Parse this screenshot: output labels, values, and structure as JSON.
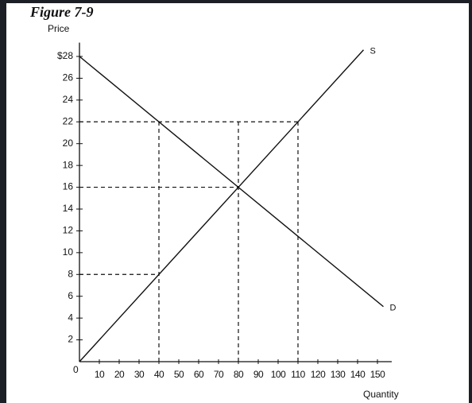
{
  "chart_data": {
    "type": "line",
    "title": "Figure 7-9",
    "y_label": "Price",
    "x_label": "Quantity",
    "origin_label": "0",
    "series": [
      {
        "name": "S",
        "color": "#111111",
        "x": [
          0,
          143
        ],
        "values": [
          0,
          28.6
        ]
      },
      {
        "name": "D",
        "color": "#111111",
        "x": [
          0,
          153
        ],
        "values": [
          28,
          5.05
        ]
      }
    ],
    "reference_lines": [
      {
        "x": [
          0,
          110
        ],
        "y": [
          22,
          22
        ]
      },
      {
        "x": [
          0,
          80
        ],
        "y": [
          16,
          16
        ]
      },
      {
        "x": [
          0,
          40
        ],
        "y": [
          8,
          8
        ]
      },
      {
        "x": [
          40,
          40
        ],
        "y": [
          0,
          22
        ]
      },
      {
        "x": [
          80,
          80
        ],
        "y": [
          0,
          22
        ]
      },
      {
        "x": [
          110,
          110
        ],
        "y": [
          0,
          22
        ]
      }
    ],
    "xlim": [
      0,
      160
    ],
    "ylim": [
      0,
      30
    ],
    "xticks": [
      10,
      20,
      30,
      40,
      50,
      60,
      70,
      80,
      90,
      100,
      110,
      120,
      130,
      140,
      150
    ],
    "yticks": [
      2,
      4,
      6,
      8,
      10,
      12,
      14,
      16,
      18,
      20,
      22,
      24,
      26,
      {
        "value": 28,
        "label": "$28"
      }
    ],
    "grid": false
  }
}
